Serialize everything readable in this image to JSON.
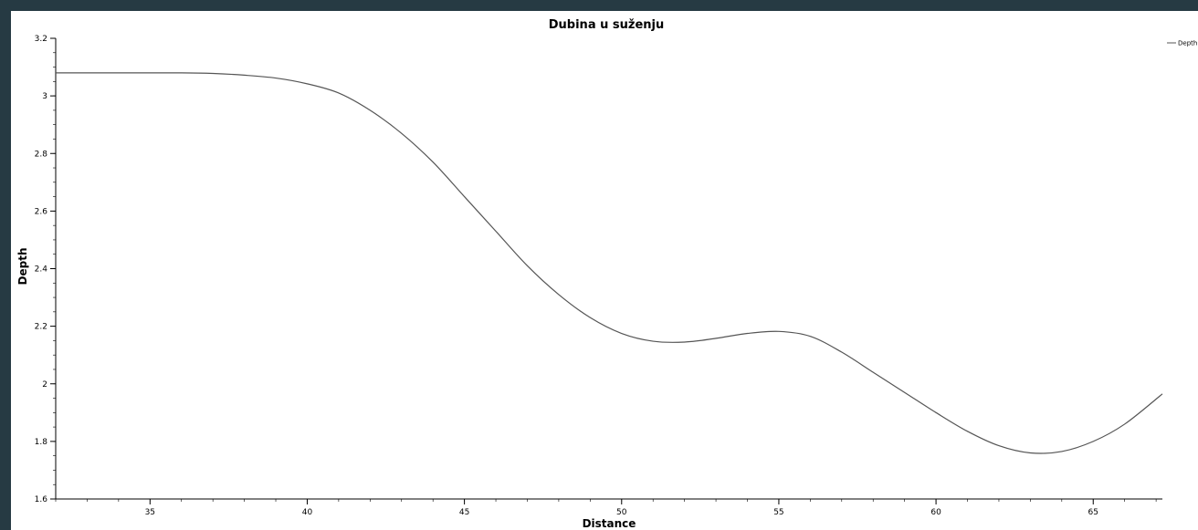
{
  "colors": {
    "frame_background": "#263a43",
    "plot_background": "#ffffff",
    "line": "#555555",
    "axis": "#000000"
  },
  "chart_data": {
    "type": "line",
    "title": "Dubina u suženju",
    "xlabel": "Distance",
    "ylabel": "Depth",
    "xlim": [
      32,
      67.2
    ],
    "ylim": [
      1.6,
      3.2
    ],
    "xticks": [
      35,
      40,
      45,
      50,
      55,
      60,
      65
    ],
    "xtick_labels": [
      "35",
      "40",
      "45",
      "50",
      "55",
      "60",
      "65"
    ],
    "yticks": [
      1.6,
      1.8,
      2.0,
      2.2,
      2.4,
      2.6,
      2.8,
      3.0,
      3.2
    ],
    "ytick_labels": [
      "1.6",
      "1.8",
      "2",
      "2.2",
      "2.4",
      "2.6",
      "2.8",
      "3",
      "3.2"
    ],
    "grid": false,
    "legend": {
      "placement": "top-right",
      "entries": [
        "Depth"
      ]
    },
    "series": [
      {
        "name": "Depth",
        "x": [
          32,
          34,
          36,
          37,
          38,
          39,
          40,
          41,
          42,
          43,
          44,
          45,
          46,
          47,
          48,
          49,
          50,
          51,
          52,
          53,
          54,
          55,
          56,
          57,
          58,
          59,
          60,
          61,
          62,
          63,
          64,
          65,
          66,
          67.2
        ],
        "y": [
          3.08,
          3.08,
          3.08,
          3.078,
          3.072,
          3.062,
          3.042,
          3.01,
          2.95,
          2.87,
          2.77,
          2.65,
          2.53,
          2.41,
          2.31,
          2.23,
          2.175,
          2.148,
          2.145,
          2.158,
          2.175,
          2.182,
          2.165,
          2.11,
          2.04,
          1.97,
          1.9,
          1.835,
          1.785,
          1.76,
          1.765,
          1.8,
          1.86,
          1.965
        ]
      }
    ]
  }
}
